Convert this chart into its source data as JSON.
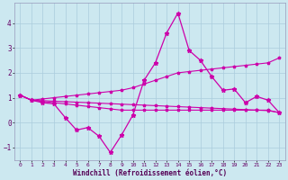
{
  "xlabel": "Windchill (Refroidissement éolien,°C)",
  "xlim": [
    -0.5,
    23.5
  ],
  "ylim": [
    -1.5,
    4.8
  ],
  "yticks": [
    -1,
    0,
    1,
    2,
    3,
    4
  ],
  "xticks": [
    0,
    1,
    2,
    3,
    4,
    5,
    6,
    7,
    8,
    9,
    10,
    11,
    12,
    13,
    14,
    15,
    16,
    17,
    18,
    19,
    20,
    21,
    22,
    23
  ],
  "bg_color": "#cce8f0",
  "grid_color": "#aaccdd",
  "line_color": "#cc00aa",
  "curve1_x": [
    0,
    1,
    2,
    3,
    4,
    5,
    6,
    7,
    8,
    9,
    10,
    11,
    12,
    13,
    14,
    15,
    16,
    17,
    18,
    19,
    20,
    21,
    22,
    23
  ],
  "curve1_y": [
    1.1,
    0.9,
    0.8,
    0.75,
    0.2,
    -0.3,
    -0.2,
    -0.55,
    -1.2,
    -0.5,
    0.3,
    1.7,
    2.4,
    3.6,
    4.4,
    2.9,
    2.5,
    1.85,
    1.3,
    1.35,
    0.8,
    1.05,
    0.9,
    0.4
  ],
  "curve2_x": [
    0,
    1,
    2,
    3,
    4,
    5,
    6,
    7,
    8,
    9,
    10,
    11,
    12,
    13,
    14,
    15,
    16,
    17,
    18,
    19,
    20,
    21,
    22,
    23
  ],
  "curve2_y": [
    1.1,
    0.9,
    0.95,
    1.0,
    1.05,
    1.1,
    1.15,
    1.2,
    1.25,
    1.3,
    1.4,
    1.55,
    1.7,
    1.85,
    2.0,
    2.05,
    2.1,
    2.15,
    2.2,
    2.25,
    2.3,
    2.35,
    2.4,
    2.6
  ],
  "curve3_x": [
    0,
    1,
    2,
    3,
    4,
    5,
    6,
    7,
    8,
    9,
    10,
    11,
    12,
    13,
    14,
    15,
    16,
    17,
    18,
    19,
    20,
    21,
    22,
    23
  ],
  "curve3_y": [
    1.1,
    0.9,
    0.85,
    0.8,
    0.75,
    0.7,
    0.65,
    0.6,
    0.55,
    0.5,
    0.5,
    0.5,
    0.5,
    0.5,
    0.5,
    0.5,
    0.5,
    0.5,
    0.5,
    0.5,
    0.5,
    0.5,
    0.5,
    0.4
  ],
  "curve4_x": [
    0,
    1,
    2,
    3,
    4,
    5,
    6,
    7,
    8,
    9,
    10,
    11,
    12,
    13,
    14,
    15,
    16,
    17,
    18,
    19,
    20,
    21,
    22,
    23
  ],
  "curve4_y": [
    1.1,
    0.9,
    0.88,
    0.86,
    0.84,
    0.82,
    0.8,
    0.78,
    0.76,
    0.74,
    0.72,
    0.7,
    0.68,
    0.66,
    0.64,
    0.62,
    0.6,
    0.58,
    0.56,
    0.54,
    0.52,
    0.5,
    0.48,
    0.4
  ]
}
